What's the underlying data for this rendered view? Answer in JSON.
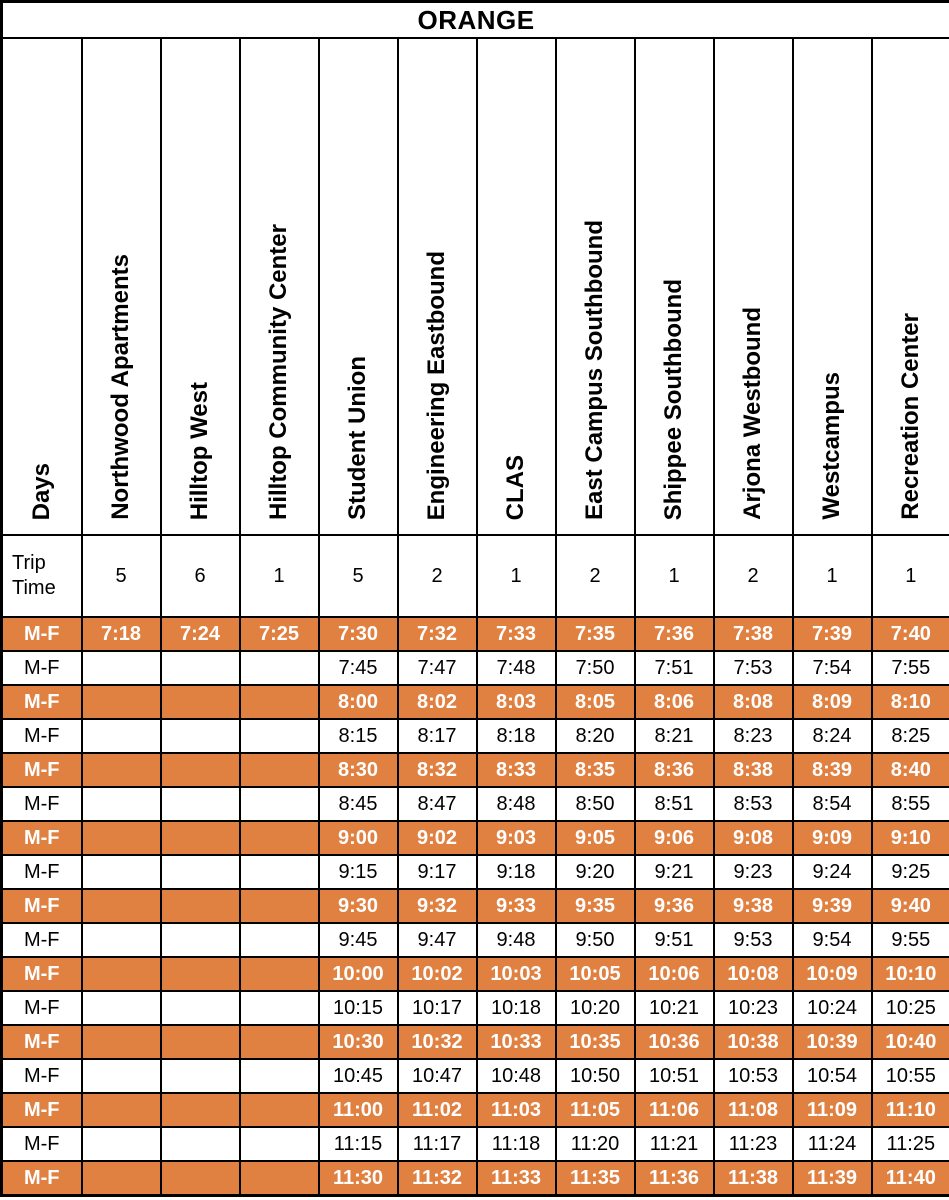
{
  "title": "ORANGE",
  "colors": {
    "row_highlight": "#E08142",
    "highlight_text": "#FFFFFF",
    "border": "#000000",
    "text": "#000000",
    "background": "#FFFFFF"
  },
  "columns": [
    "Days",
    "Northwood Apartments",
    "Hilltop West",
    "Hilltop Community Center",
    "Student Union",
    "Engineering Eastbound",
    "CLAS",
    "East Campus Southbound",
    "Shippee Southbound",
    "Arjona Westbound",
    "Westcampus",
    "Recreation Center"
  ],
  "trip_time": {
    "label": "Trip Time",
    "values": [
      "5",
      "6",
      "1",
      "5",
      "2",
      "1",
      "2",
      "1",
      "2",
      "1",
      "1"
    ]
  },
  "schedule": {
    "rows": [
      {
        "days": "M-F",
        "highlight": true,
        "times": [
          "7:18",
          "7:24",
          "7:25",
          "7:30",
          "7:32",
          "7:33",
          "7:35",
          "7:36",
          "7:38",
          "7:39",
          "7:40"
        ]
      },
      {
        "days": "M-F",
        "highlight": false,
        "times": [
          "",
          "",
          "",
          "7:45",
          "7:47",
          "7:48",
          "7:50",
          "7:51",
          "7:53",
          "7:54",
          "7:55"
        ]
      },
      {
        "days": "M-F",
        "highlight": true,
        "times": [
          "",
          "",
          "",
          "8:00",
          "8:02",
          "8:03",
          "8:05",
          "8:06",
          "8:08",
          "8:09",
          "8:10"
        ]
      },
      {
        "days": "M-F",
        "highlight": false,
        "times": [
          "",
          "",
          "",
          "8:15",
          "8:17",
          "8:18",
          "8:20",
          "8:21",
          "8:23",
          "8:24",
          "8:25"
        ]
      },
      {
        "days": "M-F",
        "highlight": true,
        "times": [
          "",
          "",
          "",
          "8:30",
          "8:32",
          "8:33",
          "8:35",
          "8:36",
          "8:38",
          "8:39",
          "8:40"
        ]
      },
      {
        "days": "M-F",
        "highlight": false,
        "times": [
          "",
          "",
          "",
          "8:45",
          "8:47",
          "8:48",
          "8:50",
          "8:51",
          "8:53",
          "8:54",
          "8:55"
        ]
      },
      {
        "days": "M-F",
        "highlight": true,
        "times": [
          "",
          "",
          "",
          "9:00",
          "9:02",
          "9:03",
          "9:05",
          "9:06",
          "9:08",
          "9:09",
          "9:10"
        ]
      },
      {
        "days": "M-F",
        "highlight": false,
        "times": [
          "",
          "",
          "",
          "9:15",
          "9:17",
          "9:18",
          "9:20",
          "9:21",
          "9:23",
          "9:24",
          "9:25"
        ]
      },
      {
        "days": "M-F",
        "highlight": true,
        "times": [
          "",
          "",
          "",
          "9:30",
          "9:32",
          "9:33",
          "9:35",
          "9:36",
          "9:38",
          "9:39",
          "9:40"
        ]
      },
      {
        "days": "M-F",
        "highlight": false,
        "times": [
          "",
          "",
          "",
          "9:45",
          "9:47",
          "9:48",
          "9:50",
          "9:51",
          "9:53",
          "9:54",
          "9:55"
        ]
      },
      {
        "days": "M-F",
        "highlight": true,
        "times": [
          "",
          "",
          "",
          "10:00",
          "10:02",
          "10:03",
          "10:05",
          "10:06",
          "10:08",
          "10:09",
          "10:10"
        ]
      },
      {
        "days": "M-F",
        "highlight": false,
        "times": [
          "",
          "",
          "",
          "10:15",
          "10:17",
          "10:18",
          "10:20",
          "10:21",
          "10:23",
          "10:24",
          "10:25"
        ]
      },
      {
        "days": "M-F",
        "highlight": true,
        "times": [
          "",
          "",
          "",
          "10:30",
          "10:32",
          "10:33",
          "10:35",
          "10:36",
          "10:38",
          "10:39",
          "10:40"
        ]
      },
      {
        "days": "M-F",
        "highlight": false,
        "times": [
          "",
          "",
          "",
          "10:45",
          "10:47",
          "10:48",
          "10:50",
          "10:51",
          "10:53",
          "10:54",
          "10:55"
        ]
      },
      {
        "days": "M-F",
        "highlight": true,
        "times": [
          "",
          "",
          "",
          "11:00",
          "11:02",
          "11:03",
          "11:05",
          "11:06",
          "11:08",
          "11:09",
          "11:10"
        ]
      },
      {
        "days": "M-F",
        "highlight": false,
        "times": [
          "",
          "",
          "",
          "11:15",
          "11:17",
          "11:18",
          "11:20",
          "11:21",
          "11:23",
          "11:24",
          "11:25"
        ]
      },
      {
        "days": "M-F",
        "highlight": true,
        "times": [
          "",
          "",
          "",
          "11:30",
          "11:32",
          "11:33",
          "11:35",
          "11:36",
          "11:38",
          "11:39",
          "11:40"
        ]
      }
    ]
  }
}
